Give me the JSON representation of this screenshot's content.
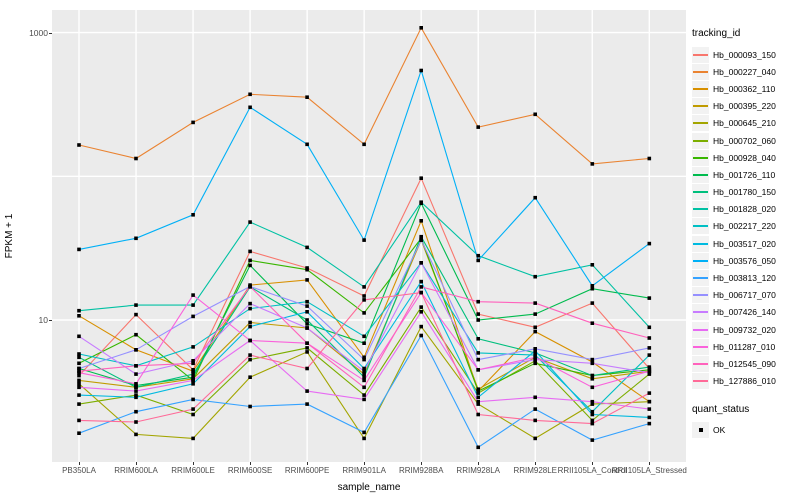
{
  "chart_data": {
    "type": "line",
    "xlabel": "sample_name",
    "ylabel": "FPKM + 1",
    "y_scale": "log10",
    "ylim": [
      1.03,
      1450
    ],
    "y_ticks": [
      {
        "value": 10,
        "label": "10"
      },
      {
        "value": 1000,
        "label": "1000"
      }
    ],
    "gridlines_y": [
      10,
      100,
      1000
    ],
    "grid_on": true,
    "panel_bg": "#EBEBEB",
    "grid_color": "#FFFFFF",
    "point_marker": {
      "shape": "square",
      "color": "#000000",
      "size": 3.6
    },
    "legend_title": "tracking_id",
    "legend_position": "right",
    "quant_legend": {
      "title": "quant_status",
      "items": [
        {
          "label": "OK",
          "marker": "black-square"
        }
      ]
    },
    "categories": [
      "PB350LA",
      "RRIM600LA",
      "RRIM600LE",
      "RRIM600SE",
      "RRIM600PE",
      "RRIM901LA",
      "RRIM928BA",
      "RRIM928LA",
      "RRIM928LE",
      "RRII105LA_Control",
      "RRII105LA_Stressed"
    ],
    "series": [
      {
        "name": "Hb_000093_150",
        "color": "#F8766D",
        "values": [
          4.1,
          10.9,
          4.5,
          30,
          23,
          14.7,
          97,
          11,
          8.9,
          13.1,
          4.6
        ]
      },
      {
        "name": "Hb_000227_040",
        "color": "#EA8331",
        "values": [
          165,
          133,
          237,
          372,
          355,
          167,
          1080,
          220,
          270,
          122,
          133
        ]
      },
      {
        "name": "Hb_000362_110",
        "color": "#D89000",
        "values": [
          10.7,
          6.2,
          4.4,
          17.5,
          19,
          5.5,
          49,
          3.2,
          8.3,
          5.1,
          2.7
        ]
      },
      {
        "name": "Hb_000395_220",
        "color": "#C09B00",
        "values": [
          3.8,
          3.4,
          3.9,
          9.6,
          8.8,
          4.2,
          36,
          3.3,
          5.5,
          3.9,
          4.4
        ]
      },
      {
        "name": "Hb_000645_210",
        "color": "#A3A500",
        "values": [
          3.6,
          1.6,
          1.5,
          4.0,
          6.0,
          1.5,
          9.0,
          2.6,
          1.5,
          2.6,
          2.7
        ]
      },
      {
        "name": "Hb_000702_060",
        "color": "#7CAE00",
        "values": [
          2.6,
          3.0,
          2.2,
          5.3,
          6.4,
          3.0,
          12.3,
          3.1,
          5.2,
          2.0,
          4.2
        ]
      },
      {
        "name": "Hb_000928_040",
        "color": "#39B600",
        "values": [
          5.0,
          7.9,
          3.8,
          26,
          22.4,
          11.2,
          37,
          3.2,
          5.0,
          4.1,
          4.5
        ]
      },
      {
        "name": "Hb_001726_110",
        "color": "#00BB4E",
        "values": [
          4.6,
          3.5,
          4.0,
          24,
          9.4,
          6.9,
          65,
          10,
          11,
          16.5,
          14.2
        ]
      },
      {
        "name": "Hb_001780_150",
        "color": "#00BF7D",
        "values": [
          5.5,
          3.4,
          4.2,
          17,
          10,
          4.0,
          38,
          7.4,
          5.9,
          4.1,
          4.7
        ]
      },
      {
        "name": "Hb_001828_020",
        "color": "#00C1A3",
        "values": [
          11.6,
          12.7,
          12.7,
          48,
          32,
          17,
          66,
          28,
          20,
          24.2,
          8.9
        ]
      },
      {
        "name": "Hb_002217_220",
        "color": "#00BFC4",
        "values": [
          5.8,
          4.8,
          6.5,
          12,
          13.4,
          7.7,
          25,
          5.9,
          5.7,
          2.3,
          5.7
        ]
      },
      {
        "name": "Hb_003517_020",
        "color": "#00BAE0",
        "values": [
          3.0,
          2.9,
          3.6,
          9.0,
          11.4,
          4.6,
          18.5,
          2.9,
          6.1,
          2.2,
          2.1
        ]
      },
      {
        "name": "Hb_003576_050",
        "color": "#00B0F6",
        "values": [
          31,
          37,
          54,
          302,
          167,
          36,
          545,
          26,
          71,
          17.3,
          34
        ]
      },
      {
        "name": "Hb_003813_120",
        "color": "#35A2FF",
        "values": [
          1.63,
          2.3,
          2.8,
          2.5,
          2.6,
          1.65,
          7.8,
          1.3,
          2.4,
          1.46,
          1.9
        ]
      },
      {
        "name": "Hb_006717_070",
        "color": "#9590FF",
        "values": [
          4.6,
          6.2,
          10.6,
          17.1,
          12.5,
          5.3,
          36,
          5.3,
          6.3,
          5.3,
          6.4
        ]
      },
      {
        "name": "Hb_007426_140",
        "color": "#C77CFF",
        "values": [
          7.7,
          4.2,
          5.2,
          13,
          8.8,
          4.4,
          25,
          4.5,
          5.3,
          5.0,
          4.3
        ]
      },
      {
        "name": "Hb_009732_020",
        "color": "#E76BF3",
        "values": [
          3.4,
          3.2,
          3.8,
          7.2,
          3.2,
          2.8,
          11.4,
          2.7,
          2.9,
          2.7,
          2.4
        ]
      },
      {
        "name": "Hb_011287_010",
        "color": "#FA62DB",
        "values": [
          4.3,
          3.6,
          14.9,
          7.2,
          6.9,
          3.8,
          15.5,
          4.5,
          5.5,
          3.4,
          4.4
        ]
      },
      {
        "name": "Hb_012545_090",
        "color": "#FF62BC",
        "values": [
          4.4,
          4.8,
          5.0,
          17.1,
          6.9,
          3.4,
          17,
          13.4,
          13.1,
          9.5,
          7.5
        ]
      },
      {
        "name": "Hb_127886_010",
        "color": "#FF6A98",
        "values": [
          2.0,
          1.95,
          2.4,
          5.7,
          4.6,
          13.8,
          15.5,
          2.2,
          2.0,
          1.9,
          3.1
        ]
      }
    ]
  }
}
